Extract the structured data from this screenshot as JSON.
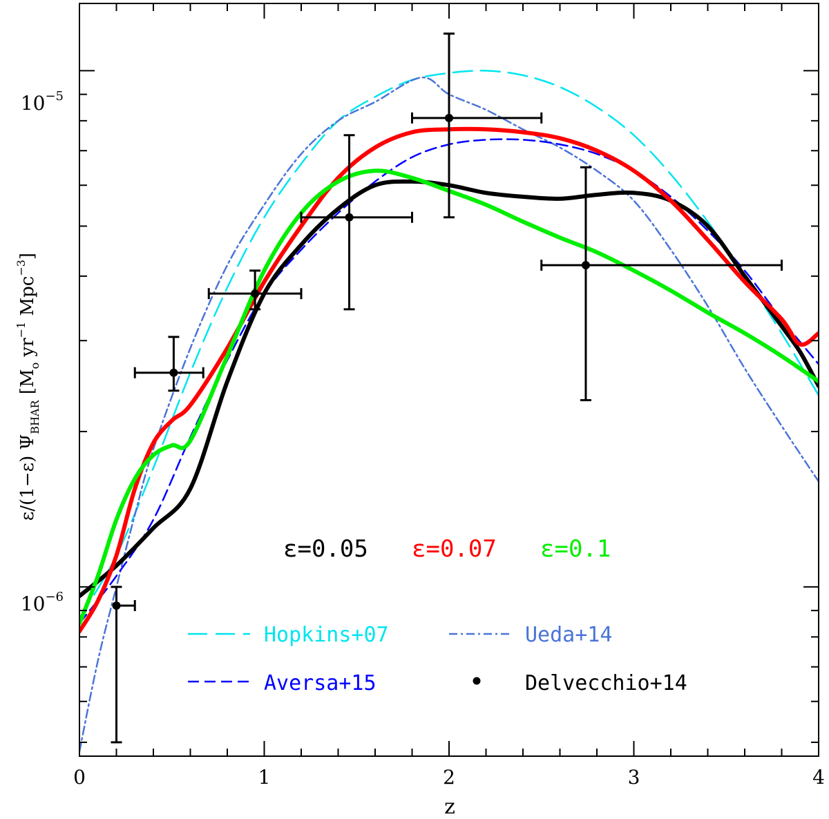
{
  "chart_data": {
    "type": "line",
    "title": "",
    "xlabel": "z",
    "ylabel": "ε/(1−ε) Ψ_BHAR [M_o yr^-1 Mpc^-3]",
    "ylabel_parts": {
      "prefix": "ε/(1−ε) Ψ",
      "sub1": "BHAR",
      "mid": " [M",
      "sub2": "o",
      "mid2": " yr",
      "sup1": "−1",
      "mid3": " Mpc",
      "sup2": "−3",
      "suffix": "]"
    },
    "xlim": [
      0,
      4
    ],
    "ylim": [
      4.7e-07,
      1.35e-05
    ],
    "yscale": "log",
    "x_ticks": [
      "0",
      "1",
      "2",
      "3",
      "4"
    ],
    "y_tick_labels": [
      {
        "base": "10",
        "exp": "−6",
        "value": 1e-06
      },
      {
        "base": "10",
        "exp": "−5",
        "value": 1e-05
      }
    ],
    "epsilon_labels": [
      {
        "text": "ε=0.05",
        "color": "#000000"
      },
      {
        "text": "ε=0.07",
        "color": "#ff0000"
      },
      {
        "text": "ε=0.1",
        "color": "#00ee00"
      }
    ],
    "series": [
      {
        "name": "Hopkins+07",
        "style": "longdash",
        "color": "#00e5ee",
        "x": [
          0,
          0.2,
          0.4,
          0.6,
          0.8,
          1.0,
          1.2,
          1.4,
          1.6,
          1.8,
          2.0,
          2.2,
          2.4,
          2.6,
          2.8,
          3.0,
          3.2,
          3.4,
          3.6,
          3.8,
          4.0
        ],
        "y": [
          8.7e-07,
          1.15e-06,
          1.7e-06,
          2.6e-06,
          3.8e-06,
          5.2e-06,
          6.6e-06,
          8e-06,
          8.9e-06,
          9.6e-06,
          9.9e-06,
          1e-05,
          9.8e-06,
          9.3e-06,
          8.5e-06,
          7.5e-06,
          6.3e-06,
          5.1e-06,
          4e-06,
          3.1e-06,
          2.35e-06
        ]
      },
      {
        "name": "Ueda+14",
        "style": "dashdot",
        "color": "#4a74d8",
        "x": [
          0,
          0.1,
          0.2,
          0.3,
          0.4,
          0.6,
          0.8,
          1.0,
          1.2,
          1.4,
          1.6,
          1.85,
          2.0,
          2.2,
          2.4,
          2.6,
          2.8,
          3.0,
          3.2,
          3.4,
          3.6,
          3.8,
          4.0
        ],
        "y": [
          4.8e-07,
          7.2e-07,
          1e-06,
          1.38e-06,
          1.85e-06,
          2.9e-06,
          4.2e-06,
          5.5e-06,
          6.9e-06,
          8e-06,
          8.7e-06,
          9.7e-06,
          9e-06,
          8.4e-06,
          7.7e-06,
          7.1e-06,
          6.4e-06,
          5.6e-06,
          4.5e-06,
          3.5e-06,
          2.65e-06,
          2.05e-06,
          1.6e-06
        ]
      },
      {
        "name": "Aversa+15",
        "style": "dash",
        "color": "#0000ff",
        "x": [
          0,
          0.2,
          0.4,
          0.6,
          0.8,
          1.0,
          1.2,
          1.4,
          1.6,
          1.8,
          2.0,
          2.2,
          2.4,
          2.6,
          2.8,
          3.0,
          3.2,
          3.4,
          3.6,
          3.8,
          4.0
        ],
        "y": [
          8.5e-07,
          1.05e-06,
          1.35e-06,
          1.95e-06,
          2.75e-06,
          3.7e-06,
          4.5e-06,
          5.3e-06,
          6.1e-06,
          6.8e-06,
          7.2e-06,
          7.35e-06,
          7.35e-06,
          7.2e-06,
          6.9e-06,
          6.4e-06,
          5.7e-06,
          4.9e-06,
          4.1e-06,
          3.3e-06,
          2.7e-06
        ]
      },
      {
        "name": "ε=0.05",
        "style": "thick",
        "color": "#000000",
        "x": [
          0,
          0.2,
          0.4,
          0.6,
          0.8,
          1.0,
          1.2,
          1.4,
          1.6,
          1.8,
          2.0,
          2.2,
          2.4,
          2.6,
          2.8,
          3.0,
          3.2,
          3.4,
          3.6,
          3.8,
          3.9,
          4.0
        ],
        "y": [
          9.6e-07,
          1.1e-06,
          1.3e-06,
          1.55e-06,
          2.5e-06,
          3.7e-06,
          4.6e-06,
          5.4e-06,
          6e-06,
          6.1e-06,
          6e-06,
          5.8e-06,
          5.7e-06,
          5.65e-06,
          5.75e-06,
          5.8e-06,
          5.6e-06,
          5e-06,
          4e-06,
          3.2e-06,
          2.85e-06,
          2.45e-06
        ]
      },
      {
        "name": "ε=0.07",
        "style": "thick",
        "color": "#ff0000",
        "x": [
          0,
          0.1,
          0.2,
          0.3,
          0.4,
          0.5,
          0.6,
          0.8,
          1.0,
          1.2,
          1.4,
          1.6,
          1.8,
          2.0,
          2.2,
          2.4,
          2.6,
          2.8,
          3.0,
          3.2,
          3.4,
          3.6,
          3.8,
          3.9,
          4.0
        ],
        "y": [
          8.2e-07,
          9.4e-07,
          1.15e-06,
          1.55e-06,
          1.9e-06,
          2.1e-06,
          2.25e-06,
          2.9e-06,
          3.9e-06,
          5e-06,
          6.2e-06,
          7.1e-06,
          7.6e-06,
          7.7e-06,
          7.7e-06,
          7.6e-06,
          7.4e-06,
          7e-06,
          6.4e-06,
          5.6e-06,
          4.7e-06,
          3.9e-06,
          3.3e-06,
          2.95e-06,
          3.1e-06
        ]
      },
      {
        "name": "ε=0.1",
        "style": "thick",
        "color": "#00ee00",
        "x": [
          0,
          0.1,
          0.2,
          0.3,
          0.4,
          0.5,
          0.6,
          0.8,
          1.0,
          1.2,
          1.4,
          1.6,
          1.8,
          2.0,
          2.2,
          2.4,
          2.6,
          2.8,
          3.0,
          3.2,
          3.4,
          3.6,
          3.8,
          4.0
        ],
        "y": [
          8.5e-07,
          1.05e-06,
          1.35e-06,
          1.62e-06,
          1.8e-06,
          1.88e-06,
          1.92e-06,
          2.8e-06,
          4.1e-06,
          5.3e-06,
          6.1e-06,
          6.4e-06,
          6.2e-06,
          5.85e-06,
          5.5e-06,
          5.1e-06,
          4.75e-06,
          4.45e-06,
          4.1e-06,
          3.75e-06,
          3.4e-06,
          3.1e-06,
          2.8e-06,
          2.5e-06
        ]
      }
    ],
    "points": {
      "name": "Delvecchio+14",
      "color": "#000000",
      "data": [
        {
          "x": 0.2,
          "y": 9.2e-07,
          "xerr": [
            0.2,
            0.3
          ],
          "yerr": [
            5e-07,
            1e-06
          ]
        },
        {
          "x": 0.51,
          "y": 2.6e-06,
          "xerr": [
            0.3,
            0.67
          ],
          "yerr": [
            2.4e-06,
            3.05e-06
          ]
        },
        {
          "x": 0.95,
          "y": 3.7e-06,
          "xerr": [
            0.7,
            1.2
          ],
          "yerr": [
            3.45e-06,
            4.1e-06
          ]
        },
        {
          "x": 1.46,
          "y": 5.2e-06,
          "xerr": [
            1.2,
            1.8
          ],
          "yerr": [
            3.45e-06,
            7.5e-06
          ]
        },
        {
          "x": 2.0,
          "y": 8.1e-06,
          "xerr": [
            1.8,
            2.5
          ],
          "yerr": [
            5.2e-06,
            1.18e-05
          ]
        },
        {
          "x": 2.74,
          "y": 4.2e-06,
          "xerr": [
            2.5,
            3.8
          ],
          "yerr": [
            2.3e-06,
            6.5e-06
          ]
        }
      ]
    },
    "legend": [
      {
        "label": "Hopkins+07",
        "color": "#00e5ee",
        "style": "longdash"
      },
      {
        "label": "Ueda+14",
        "color": "#4a74d8",
        "style": "dashdot"
      },
      {
        "label": "Aversa+15",
        "color": "#0000ff",
        "style": "dash"
      },
      {
        "label": "Delvecchio+14",
        "color": "#000000",
        "style": "point"
      }
    ]
  }
}
